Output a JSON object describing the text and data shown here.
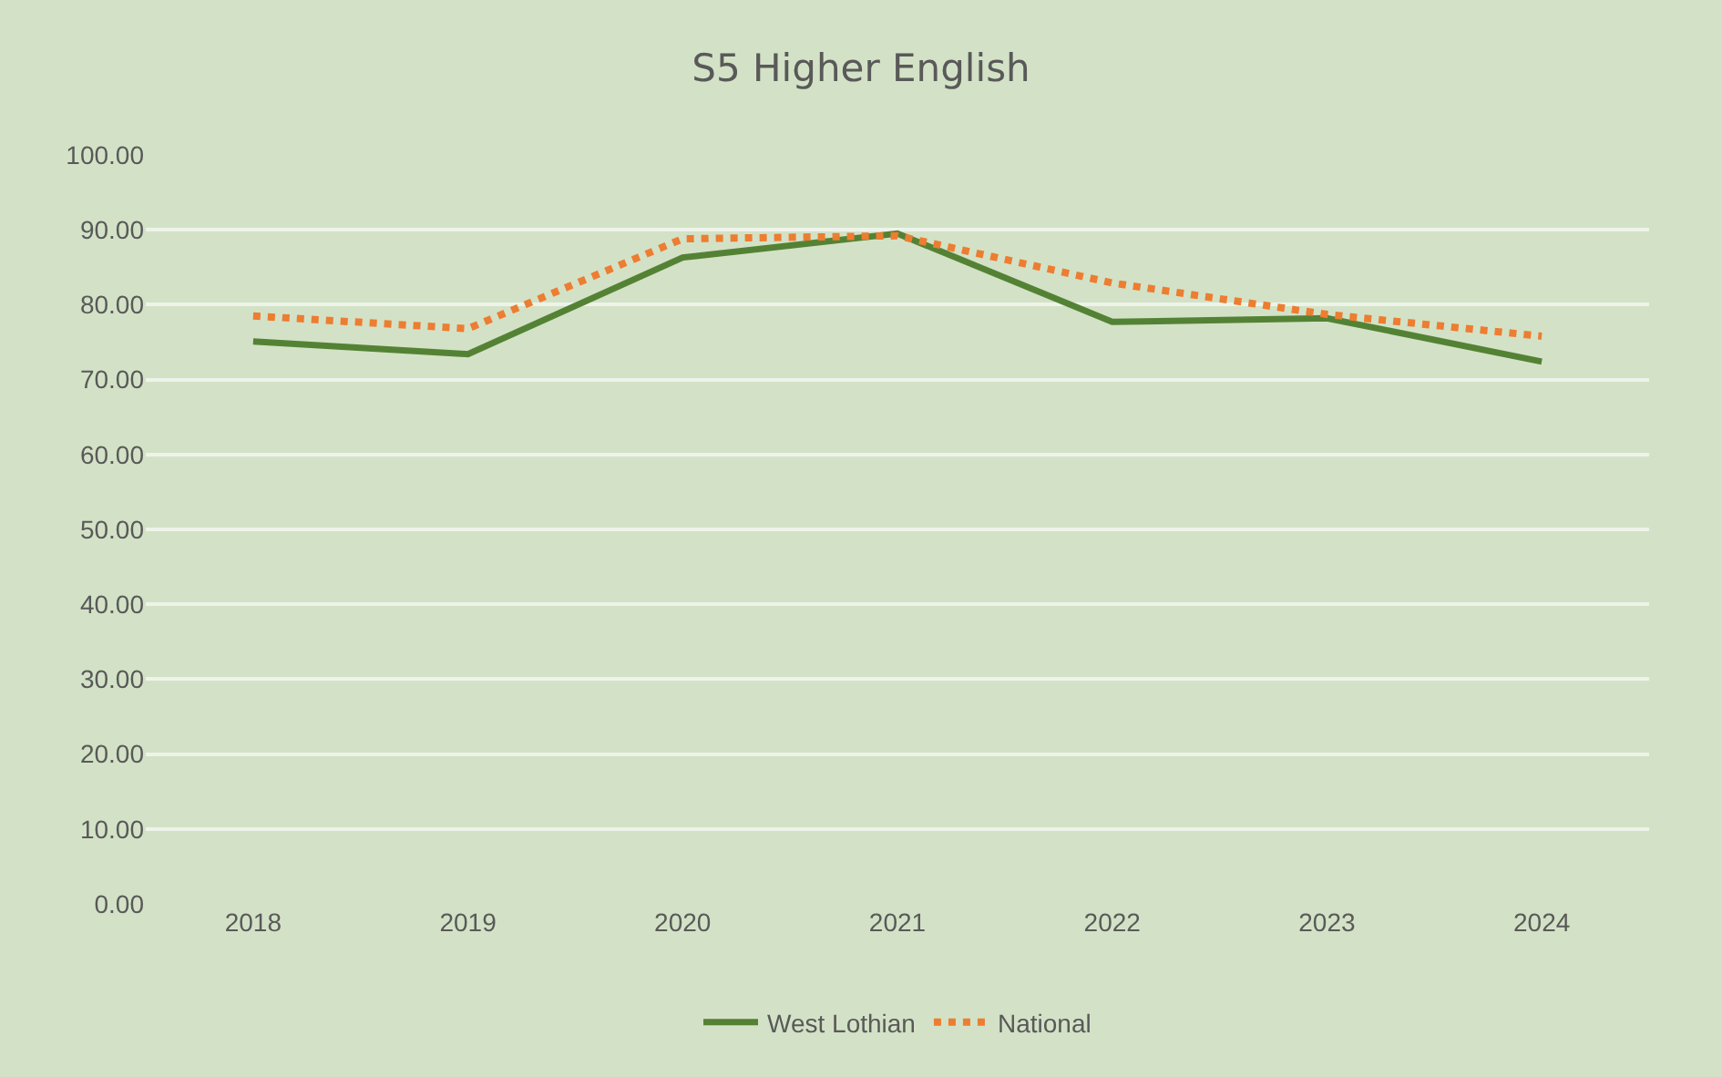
{
  "chart_data": {
    "type": "line",
    "title": "S5 Higher English",
    "categories": [
      "2018",
      "2019",
      "2020",
      "2021",
      "2022",
      "2023",
      "2024"
    ],
    "series": [
      {
        "name": "West Lothian",
        "color": "#548235",
        "line_style": "solid",
        "values": [
          75.1,
          73.4,
          86.3,
          89.5,
          77.7,
          78.2,
          72.4
        ]
      },
      {
        "name": "National",
        "color": "#ed7d31",
        "line_style": "dotted",
        "values": [
          78.5,
          76.8,
          88.8,
          89.2,
          82.9,
          78.7,
          75.8
        ]
      }
    ],
    "ylim": [
      0,
      100
    ],
    "yticks": [
      {
        "value": 0,
        "label": "0.00"
      },
      {
        "value": 10,
        "label": "10.00"
      },
      {
        "value": 20,
        "label": "20.00"
      },
      {
        "value": 30,
        "label": "30.00"
      },
      {
        "value": 40,
        "label": "40.00"
      },
      {
        "value": 50,
        "label": "50.00"
      },
      {
        "value": 60,
        "label": "60.00"
      },
      {
        "value": 70,
        "label": "70.00"
      },
      {
        "value": 80,
        "label": "80.00"
      },
      {
        "value": 90,
        "label": "90.00"
      },
      {
        "value": 100,
        "label": "100.00"
      }
    ],
    "grid": "y",
    "legend": "bottom",
    "marker": "none"
  }
}
